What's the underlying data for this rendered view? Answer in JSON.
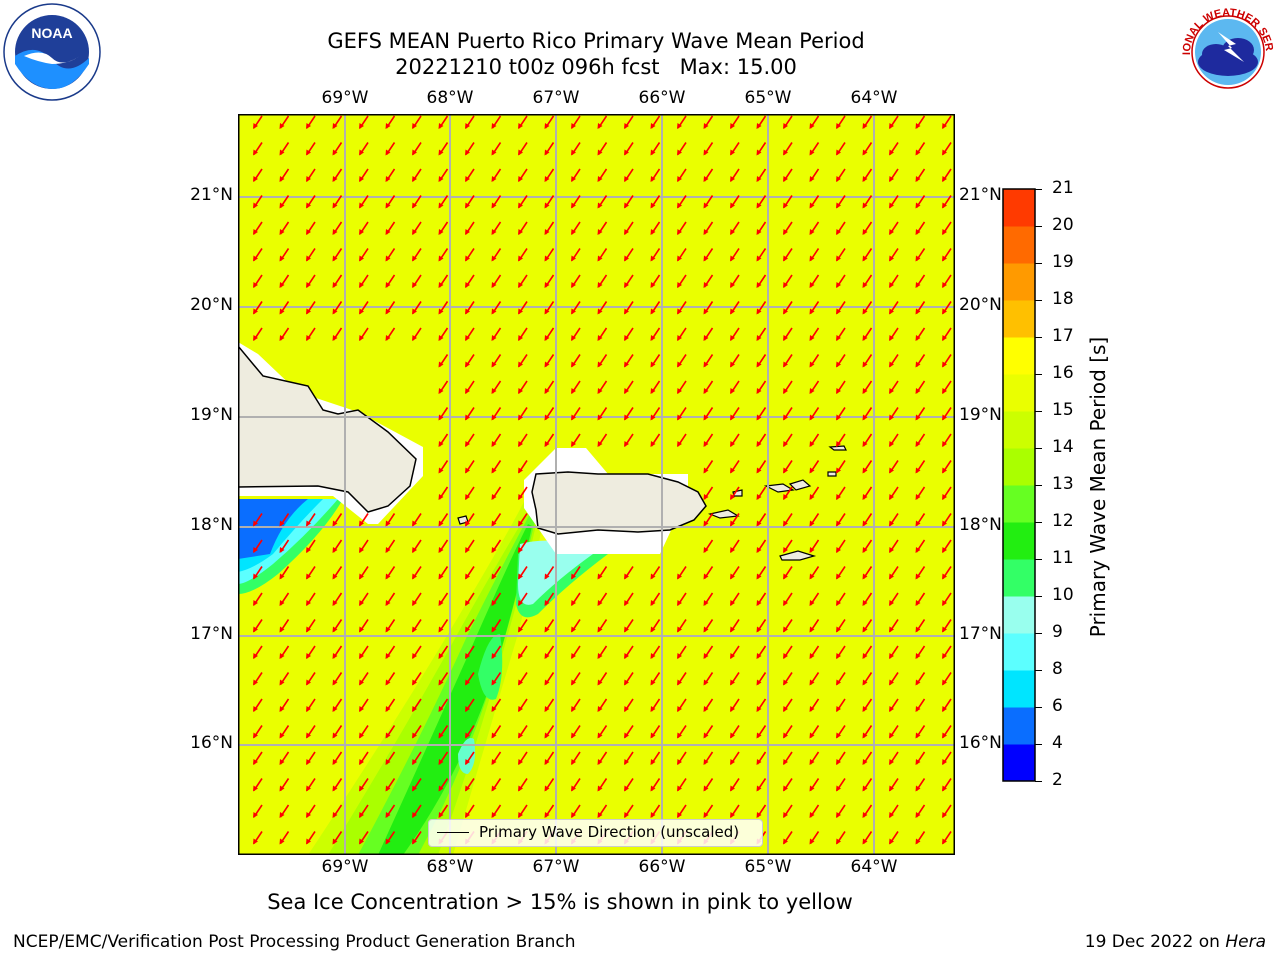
{
  "title": {
    "line1": "GEFS MEAN Puerto Rico Primary Wave Mean Period",
    "line2": "20221210 t00z 096h fcst   Max: 15.00"
  },
  "map": {
    "lon_labels": [
      "69°W",
      "68°W",
      "67°W",
      "66°W",
      "65°W",
      "64°W"
    ],
    "lat_labels": [
      "21°N",
      "20°N",
      "19°N",
      "18°N",
      "17°N",
      "16°N"
    ],
    "background_color": "#eaff00",
    "arrow_color": "#ff0000",
    "land_color": "#eeecdf"
  },
  "legend": {
    "label": "Primary Wave Direction (unscaled)"
  },
  "colorbar": {
    "title": "Primary Wave Mean Period [s]",
    "ticks": [
      "2",
      "4",
      "6",
      "8",
      "9",
      "10",
      "11",
      "12",
      "13",
      "14",
      "15",
      "16",
      "17",
      "18",
      "19",
      "20",
      "21"
    ],
    "colors": [
      "#0000ff",
      "#0a6eff",
      "#00e5ff",
      "#5cffff",
      "#99ffee",
      "#33ff66",
      "#22ee11",
      "#66ff22",
      "#aaff00",
      "#ccff00",
      "#eaff00",
      "#ffff00",
      "#ffc000",
      "#ff9a00",
      "#ff6a00",
      "#ff3a00",
      "#ff0000"
    ]
  },
  "caption": "Sea Ice Concentration > 15% is shown in pink to yellow",
  "footer": {
    "left": "NCEP/EMC/Verification Post Processing Product Generation Branch",
    "right_date": "19 Dec 2022 on ",
    "right_host": "Hera"
  },
  "logos": {
    "noaa": "NOAA",
    "nws": "NATIONAL WEATHER SERVICE"
  }
}
